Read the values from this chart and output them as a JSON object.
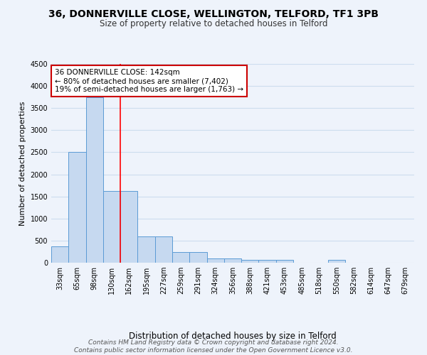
{
  "title": "36, DONNERVILLE CLOSE, WELLINGTON, TELFORD, TF1 3PB",
  "subtitle": "Size of property relative to detached houses in Telford",
  "xlabel": "Distribution of detached houses by size in Telford",
  "ylabel": "Number of detached properties",
  "categories": [
    "33sqm",
    "65sqm",
    "98sqm",
    "130sqm",
    "162sqm",
    "195sqm",
    "227sqm",
    "259sqm",
    "291sqm",
    "324sqm",
    "356sqm",
    "388sqm",
    "421sqm",
    "453sqm",
    "485sqm",
    "518sqm",
    "550sqm",
    "582sqm",
    "614sqm",
    "647sqm",
    "679sqm"
  ],
  "values": [
    370,
    2500,
    3750,
    1630,
    1630,
    600,
    600,
    240,
    240,
    100,
    100,
    60,
    60,
    60,
    0,
    0,
    60,
    0,
    0,
    0,
    0
  ],
  "bar_color": "#c6d9f0",
  "bar_edge_color": "#5b9bd5",
  "red_line_x": 3.5,
  "ylim": [
    0,
    4500
  ],
  "yticks": [
    0,
    500,
    1000,
    1500,
    2000,
    2500,
    3000,
    3500,
    4000,
    4500
  ],
  "annotation_title": "36 DONNERVILLE CLOSE: 142sqm",
  "annotation_line1": "← 80% of detached houses are smaller (7,402)",
  "annotation_line2": "19% of semi-detached houses are larger (1,763) →",
  "annotation_box_color": "#ffffff",
  "annotation_box_edgecolor": "#cc0000",
  "footer_line1": "Contains HM Land Registry data © Crown copyright and database right 2024.",
  "footer_line2": "Contains public sector information licensed under the Open Government Licence v3.0.",
  "background_color": "#eef3fb",
  "grid_color": "#ccddee",
  "title_fontsize": 10,
  "subtitle_fontsize": 8.5,
  "ylabel_fontsize": 8,
  "xlabel_fontsize": 8.5,
  "tick_fontsize": 7,
  "annotation_fontsize": 7.5,
  "footer_fontsize": 6.5
}
